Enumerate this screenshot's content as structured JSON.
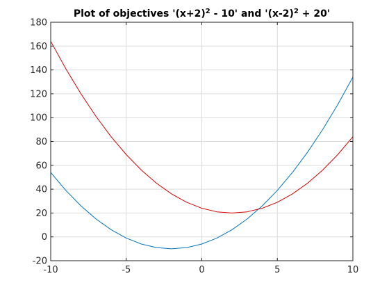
{
  "chart_data": {
    "type": "line",
    "title": {
      "parts": [
        {
          "text": "Plot of objectives '(x+2)",
          "sup": false
        },
        {
          "text": "2",
          "sup": true
        },
        {
          "text": " - 10' and '(x-2)",
          "sup": false
        },
        {
          "text": "2",
          "sup": true
        },
        {
          "text": " + 20'",
          "sup": false
        }
      ]
    },
    "xlabel": "",
    "ylabel": "",
    "xlim": [
      -10,
      10
    ],
    "ylim": [
      -20,
      180
    ],
    "xticks": [
      -10,
      -5,
      0,
      5,
      10
    ],
    "yticks": [
      -20,
      0,
      20,
      40,
      60,
      80,
      100,
      120,
      140,
      160,
      180
    ],
    "grid": true,
    "legend": "none",
    "series": [
      {
        "color": "#0072BD",
        "x": [
          -10,
          -9,
          -8,
          -7,
          -6,
          -5,
          -4,
          -3,
          -2,
          -1,
          0,
          1,
          2,
          3,
          4,
          5,
          6,
          7,
          8,
          9,
          10
        ],
        "y": [
          54,
          39,
          26,
          15,
          6,
          -1,
          -6,
          -9,
          -10,
          -9,
          -6,
          -1,
          6,
          15,
          26,
          39,
          54,
          71,
          90,
          111,
          134
        ]
      },
      {
        "color": "#D40000",
        "x": [
          -10,
          -9,
          -8,
          -7,
          -6,
          -5,
          -4,
          -3,
          -2,
          -1,
          0,
          1,
          2,
          3,
          4,
          5,
          6,
          7,
          8,
          9,
          10
        ],
        "y": [
          164,
          141,
          120,
          101,
          84,
          69,
          56,
          45,
          36,
          29,
          24,
          21,
          20,
          21,
          24,
          29,
          36,
          45,
          56,
          69,
          84
        ]
      }
    ]
  }
}
